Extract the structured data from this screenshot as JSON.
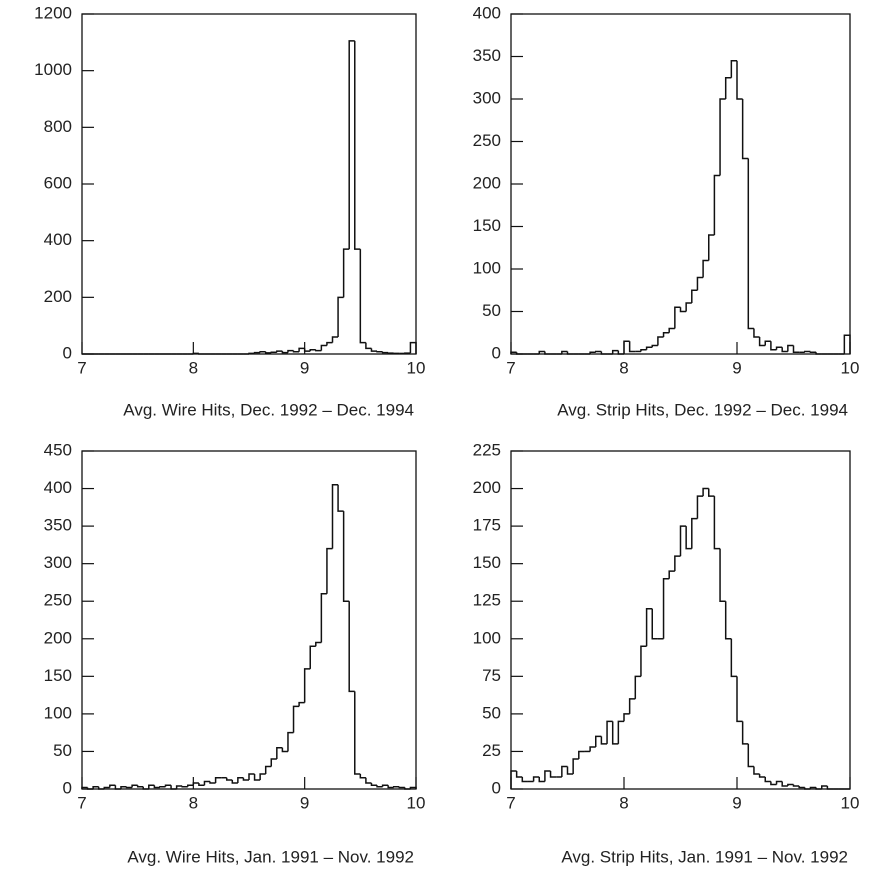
{
  "chart_data": [
    {
      "type": "histogram",
      "xlabel": "Avg. Wire Hits, Dec. 1992 – Dec. 1994",
      "bins": [
        7,
        7.05,
        7.1,
        7.15,
        7.2,
        7.25,
        7.3,
        7.35,
        7.4,
        7.45,
        7.5,
        7.55,
        7.6,
        7.65,
        7.7,
        7.75,
        7.8,
        7.85,
        7.9,
        7.95,
        8,
        8.05,
        8.1,
        8.15,
        8.2,
        8.25,
        8.3,
        8.35,
        8.4,
        8.45,
        8.5,
        8.55,
        8.6,
        8.65,
        8.7,
        8.75,
        8.8,
        8.85,
        8.9,
        8.95,
        9,
        9.05,
        9.1,
        9.15,
        9.2,
        9.25,
        9.3,
        9.35,
        9.4,
        9.45,
        9.5,
        9.55,
        9.6,
        9.65,
        9.7,
        9.75,
        9.8,
        9.85,
        9.9,
        9.95,
        10
      ],
      "values": [
        0,
        0,
        0,
        0,
        0,
        0,
        0,
        0,
        0,
        0,
        0,
        0,
        0,
        0,
        0,
        0,
        0,
        0,
        0,
        0,
        2,
        0,
        0,
        0,
        0,
        0,
        0,
        0,
        0,
        0,
        2,
        5,
        8,
        4,
        6,
        10,
        5,
        12,
        8,
        20,
        10,
        15,
        12,
        30,
        40,
        60,
        200,
        370,
        1105,
        370,
        40,
        20,
        10,
        8,
        5,
        3,
        2,
        2,
        3,
        40
      ],
      "xlim": [
        7,
        10
      ],
      "xticks": [
        7,
        8,
        9,
        10
      ],
      "ylim": [
        0,
        1200
      ],
      "yticks": [
        0,
        200,
        400,
        600,
        800,
        1000,
        1200
      ],
      "color": "#111111"
    },
    {
      "type": "histogram",
      "xlabel": "Avg. Strip Hits, Dec. 1992 – Dec. 1994",
      "bins": [
        7,
        7.05,
        7.1,
        7.15,
        7.2,
        7.25,
        7.3,
        7.35,
        7.4,
        7.45,
        7.5,
        7.55,
        7.6,
        7.65,
        7.7,
        7.75,
        7.8,
        7.85,
        7.9,
        7.95,
        8,
        8.05,
        8.1,
        8.15,
        8.2,
        8.25,
        8.3,
        8.35,
        8.4,
        8.45,
        8.5,
        8.55,
        8.6,
        8.65,
        8.7,
        8.75,
        8.8,
        8.85,
        8.9,
        8.95,
        9,
        9.05,
        9.1,
        9.15,
        9.2,
        9.25,
        9.3,
        9.35,
        9.4,
        9.45,
        9.5,
        9.55,
        9.6,
        9.65,
        9.7,
        9.75,
        9.8,
        9.85,
        9.9,
        9.95,
        10
      ],
      "values": [
        2,
        0,
        0,
        0,
        0,
        3,
        0,
        0,
        0,
        3,
        0,
        0,
        0,
        0,
        2,
        3,
        0,
        0,
        4,
        0,
        15,
        3,
        3,
        5,
        8,
        10,
        20,
        25,
        30,
        55,
        50,
        60,
        75,
        90,
        110,
        140,
        210,
        300,
        325,
        345,
        300,
        230,
        30,
        20,
        10,
        15,
        5,
        8,
        3,
        10,
        2,
        2,
        3,
        2,
        0,
        0,
        0,
        0,
        0,
        22
      ],
      "xlim": [
        7,
        10
      ],
      "xticks": [
        7,
        8,
        9,
        10
      ],
      "ylim": [
        0,
        400
      ],
      "yticks": [
        0,
        50,
        100,
        150,
        200,
        250,
        300,
        350,
        400
      ],
      "color": "#111111"
    },
    {
      "type": "histogram",
      "xlabel": "Avg. Wire Hits, Jan. 1991 – Nov. 1992",
      "bins": [
        7,
        7.05,
        7.1,
        7.15,
        7.2,
        7.25,
        7.3,
        7.35,
        7.4,
        7.45,
        7.5,
        7.55,
        7.6,
        7.65,
        7.7,
        7.75,
        7.8,
        7.85,
        7.9,
        7.95,
        8,
        8.05,
        8.1,
        8.15,
        8.2,
        8.25,
        8.3,
        8.35,
        8.4,
        8.45,
        8.5,
        8.55,
        8.6,
        8.65,
        8.7,
        8.75,
        8.8,
        8.85,
        8.9,
        8.95,
        9,
        9.05,
        9.1,
        9.15,
        9.2,
        9.25,
        9.3,
        9.35,
        9.4,
        9.45,
        9.5,
        9.55,
        9.6,
        9.65,
        9.7,
        9.75,
        9.8,
        9.85,
        9.9,
        9.95,
        10
      ],
      "values": [
        2,
        0,
        3,
        0,
        2,
        5,
        0,
        3,
        2,
        5,
        3,
        0,
        5,
        2,
        3,
        5,
        0,
        4,
        3,
        5,
        8,
        5,
        10,
        8,
        15,
        15,
        12,
        8,
        15,
        12,
        20,
        12,
        20,
        30,
        40,
        55,
        50,
        75,
        110,
        115,
        160,
        190,
        195,
        260,
        320,
        405,
        370,
        250,
        130,
        20,
        15,
        8,
        5,
        3,
        5,
        2,
        3,
        2,
        0,
        2
      ],
      "xlim": [
        7,
        10
      ],
      "xticks": [
        7,
        8,
        9,
        10
      ],
      "ylim": [
        0,
        450
      ],
      "yticks": [
        0,
        50,
        100,
        150,
        200,
        250,
        300,
        350,
        400,
        450
      ],
      "color": "#111111"
    },
    {
      "type": "histogram",
      "xlabel": "Avg. Strip Hits, Jan. 1991 – Nov. 1992",
      "bins": [
        7,
        7.05,
        7.1,
        7.15,
        7.2,
        7.25,
        7.3,
        7.35,
        7.4,
        7.45,
        7.5,
        7.55,
        7.6,
        7.65,
        7.7,
        7.75,
        7.8,
        7.85,
        7.9,
        7.95,
        8,
        8.05,
        8.1,
        8.15,
        8.2,
        8.25,
        8.3,
        8.35,
        8.4,
        8.45,
        8.5,
        8.55,
        8.6,
        8.65,
        8.7,
        8.75,
        8.8,
        8.85,
        8.9,
        8.95,
        9,
        9.05,
        9.1,
        9.15,
        9.2,
        9.25,
        9.3,
        9.35,
        9.4,
        9.45,
        9.5,
        9.55,
        9.6,
        9.65,
        9.7,
        9.75,
        9.8,
        9.85,
        9.9,
        9.95,
        10
      ],
      "values": [
        12,
        8,
        5,
        5,
        8,
        5,
        12,
        8,
        8,
        15,
        10,
        20,
        25,
        25,
        28,
        35,
        30,
        45,
        30,
        45,
        50,
        60,
        75,
        95,
        120,
        100,
        100,
        140,
        145,
        155,
        175,
        160,
        180,
        195,
        200,
        195,
        160,
        125,
        100,
        75,
        45,
        30,
        15,
        10,
        8,
        5,
        3,
        5,
        2,
        3,
        2,
        1,
        0,
        1,
        0,
        2,
        0,
        0,
        0,
        0
      ],
      "xlim": [
        7,
        10
      ],
      "xticks": [
        7,
        8,
        9,
        10
      ],
      "ylim": [
        0,
        225
      ],
      "yticks": [
        0,
        25,
        50,
        75,
        100,
        125,
        150,
        175,
        200,
        225
      ],
      "color": "#111111"
    }
  ]
}
